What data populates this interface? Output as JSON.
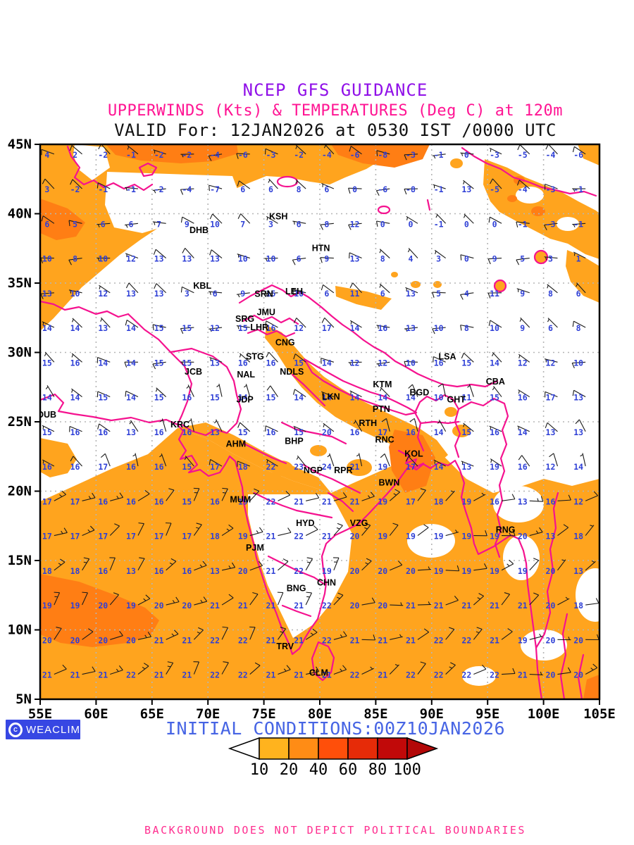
{
  "title": {
    "line1": "NCEP GFS GUIDANCE",
    "line2": "UPPERWINDS (Kts) & TEMPERATURES (Deg C) at 120m",
    "line3": "VALID For: 12JAN2026 at 0530 IST /0000 UTC"
  },
  "initial_conditions": "INITIAL CONDITIONS:00Z10JAN2026",
  "footer": "BACKGROUND DOES NOT DEPICT POLITICAL BOUNDARIES",
  "watermark": {
    "text": "WEACLIM",
    "icon": "copyright-circle-icon"
  },
  "colors": {
    "title_purple": "#9010E8",
    "title_pink": "#FF1493",
    "title_black": "#111111",
    "initial_blue": "#4664E4",
    "footer_pink": "#FF2D8F",
    "watermark_bg": "#3747E3",
    "boundary_pink": "#F5128F",
    "shade_light": "#FFA41E",
    "shade_dark": "#FF7E14",
    "temp_blue": "#2E3FD6",
    "grid_gray": "#B5B5B5",
    "barb_black": "#1a1a1a"
  },
  "map_extent": {
    "lon_min": 55,
    "lon_max": 105,
    "lat_min": 5,
    "lat_max": 45
  },
  "axes": {
    "lat_labels": [
      "45N",
      "40N",
      "35N",
      "30N",
      "25N",
      "20N",
      "15N",
      "10N",
      "5N"
    ],
    "lon_labels": [
      "55E",
      "60E",
      "65E",
      "70E",
      "75E",
      "80E",
      "85E",
      "90E",
      "95E",
      "100E",
      "105E"
    ]
  },
  "legend": {
    "values": [
      "10",
      "20",
      "40",
      "60",
      "80",
      "100"
    ],
    "box_colors": [
      "#FFB31E",
      "#FF8C15",
      "#FF4F0A",
      "#E62B08",
      "#C10909"
    ],
    "arrow_left_color": "#FFFFFF",
    "arrow_right_color": "#B30808"
  },
  "temps_c": {
    "lons": [
      56.25,
      58.75,
      61.25,
      63.75,
      66.25,
      68.75,
      71.25,
      73.75,
      76.25,
      78.75,
      81.25,
      83.75,
      86.25,
      88.75,
      91.25,
      93.75,
      96.25,
      98.75,
      101.25,
      103.75
    ],
    "lats": [
      44.3,
      41.8,
      39.3,
      36.8,
      34.3,
      31.8,
      29.3,
      26.8,
      24.3,
      21.8,
      19.3,
      16.8,
      14.3,
      11.8,
      9.3,
      6.8
    ],
    "values": [
      [
        4,
        2,
        -2,
        -1,
        -2,
        -2,
        -4,
        -6,
        -3,
        -2,
        -4,
        -6,
        -8,
        -3,
        -1,
        0,
        -3,
        -5,
        -4,
        -6
      ],
      [
        3,
        -2,
        -1,
        -1,
        -2,
        -4,
        -7,
        6,
        6,
        8,
        6,
        0,
        -6,
        -8,
        -1,
        13,
        -5,
        -4,
        -3,
        -1
      ],
      [
        6,
        5,
        6,
        6,
        7,
        9,
        10,
        7,
        3,
        6,
        8,
        12,
        0,
        0,
        -1,
        0,
        0,
        -1,
        -3,
        -1
      ],
      [
        10,
        8,
        10,
        12,
        13,
        13,
        13,
        10,
        10,
        6,
        9,
        13,
        8,
        4,
        3,
        0,
        9,
        5,
        3,
        1
      ],
      [
        13,
        10,
        12,
        13,
        13,
        3,
        6,
        9,
        15,
        10,
        6,
        11,
        6,
        13,
        5,
        4,
        11,
        9,
        8,
        6
      ],
      [
        14,
        14,
        13,
        14,
        15,
        15,
        12,
        15,
        16,
        12,
        17,
        14,
        16,
        13,
        10,
        8,
        10,
        9,
        6,
        8
      ],
      [
        15,
        16,
        14,
        14,
        15,
        15,
        13,
        16,
        16,
        15,
        14,
        12,
        12,
        10,
        16,
        15,
        14,
        12,
        12,
        10
      ],
      [
        14,
        14,
        15,
        14,
        15,
        16,
        15,
        14,
        15,
        14,
        14,
        14,
        14,
        14,
        10,
        11,
        15,
        16,
        17,
        13
      ],
      [
        15,
        16,
        16,
        13,
        16,
        16,
        13,
        15,
        16,
        15,
        20,
        16,
        17,
        16,
        14,
        15,
        16,
        14,
        13,
        13
      ],
      [
        16,
        16,
        17,
        16,
        16,
        15,
        17,
        18,
        22,
        23,
        24,
        21,
        19,
        17,
        14,
        13,
        19,
        16,
        12,
        14
      ],
      [
        17,
        17,
        16,
        16,
        16,
        15,
        16,
        19,
        22,
        21,
        21,
        21,
        19,
        17,
        18,
        19,
        16,
        13,
        16,
        12
      ],
      [
        17,
        17,
        17,
        17,
        17,
        17,
        18,
        19,
        21,
        22,
        21,
        20,
        19,
        19,
        19,
        19,
        19,
        20,
        13,
        18
      ],
      [
        18,
        18,
        16,
        13,
        16,
        16,
        13,
        20,
        21,
        22,
        19,
        20,
        20,
        20,
        19,
        19,
        19,
        19,
        20,
        13
      ],
      [
        19,
        19,
        20,
        19,
        20,
        20,
        21,
        21,
        21,
        21,
        22,
        20,
        20,
        21,
        21,
        21,
        21,
        21,
        20,
        18
      ],
      [
        20,
        20,
        20,
        20,
        21,
        21,
        22,
        22,
        21,
        21,
        22,
        21,
        21,
        21,
        22,
        22,
        21,
        19,
        20,
        20
      ],
      [
        21,
        21,
        21,
        22,
        21,
        21,
        22,
        22,
        21,
        21,
        21,
        22,
        21,
        22,
        22,
        22,
        22,
        21,
        20,
        20
      ]
    ]
  },
  "wind_model": {
    "regions": [
      {
        "name": "northern-westerlies",
        "lat_min": 27.5,
        "lat_max": 46,
        "lon_min": 55,
        "lon_max": 105,
        "dir_from_deg": 290,
        "speed_kts": 8
      },
      {
        "name": "subtropical-northwesterlies",
        "lat_min": 20,
        "lat_max": 27.5,
        "lon_min": 55,
        "lon_max": 105,
        "dir_from_deg": 320,
        "speed_kts": 6
      },
      {
        "name": "arabian-sea-ne-trades",
        "lat_min": 4,
        "lat_max": 20,
        "lon_min": 55,
        "lon_max": 82,
        "dir_from_deg": 50,
        "speed_kts": 13
      },
      {
        "name": "bay-of-bengal-ne-trades",
        "lat_min": 4,
        "lat_max": 20,
        "lon_min": 82,
        "lon_max": 105,
        "dir_from_deg": 65,
        "speed_kts": 10
      }
    ]
  },
  "stations": [
    {
      "code": "KSH",
      "lon": 76.3,
      "lat": 39.6
    },
    {
      "code": "DHB",
      "lon": 69.2,
      "lat": 38.6
    },
    {
      "code": "HTN",
      "lon": 80.1,
      "lat": 37.3
    },
    {
      "code": "KBL",
      "lon": 69.5,
      "lat": 34.6
    },
    {
      "code": "SRN",
      "lon": 75.0,
      "lat": 34.0
    },
    {
      "code": "LEH",
      "lon": 77.7,
      "lat": 34.2
    },
    {
      "code": "JMU",
      "lon": 75.2,
      "lat": 32.7
    },
    {
      "code": "SRG",
      "lon": 73.3,
      "lat": 32.2
    },
    {
      "code": "LHR",
      "lon": 74.6,
      "lat": 31.6
    },
    {
      "code": "CNG",
      "lon": 76.9,
      "lat": 30.5
    },
    {
      "code": "STG",
      "lon": 74.2,
      "lat": 29.5
    },
    {
      "code": "JCB",
      "lon": 68.7,
      "lat": 28.4
    },
    {
      "code": "NAL",
      "lon": 73.4,
      "lat": 28.2
    },
    {
      "code": "NDLS",
      "lon": 77.5,
      "lat": 28.4
    },
    {
      "code": "JDP",
      "lon": 73.3,
      "lat": 26.4
    },
    {
      "code": "DUB",
      "lon": 55.6,
      "lat": 25.3
    },
    {
      "code": "KRC",
      "lon": 67.5,
      "lat": 24.6
    },
    {
      "code": "LKN",
      "lon": 81.0,
      "lat": 26.6
    },
    {
      "code": "KTM",
      "lon": 85.6,
      "lat": 27.5
    },
    {
      "code": "BGD",
      "lon": 88.9,
      "lat": 26.9
    },
    {
      "code": "GHT",
      "lon": 92.2,
      "lat": 26.4
    },
    {
      "code": "CBA",
      "lon": 95.7,
      "lat": 27.7
    },
    {
      "code": "LSA",
      "lon": 91.4,
      "lat": 29.5
    },
    {
      "code": "PTN",
      "lon": 85.5,
      "lat": 25.7
    },
    {
      "code": "RTH",
      "lon": 84.3,
      "lat": 24.7
    },
    {
      "code": "RNC",
      "lon": 85.8,
      "lat": 23.5
    },
    {
      "code": "KOL",
      "lon": 88.4,
      "lat": 22.5
    },
    {
      "code": "RPR",
      "lon": 82.1,
      "lat": 21.3
    },
    {
      "code": "BWN",
      "lon": 86.2,
      "lat": 20.4
    },
    {
      "code": "AHM",
      "lon": 72.5,
      "lat": 23.2
    },
    {
      "code": "BHP",
      "lon": 77.7,
      "lat": 23.4
    },
    {
      "code": "NGP",
      "lon": 79.4,
      "lat": 21.3
    },
    {
      "code": "MUM",
      "lon": 72.9,
      "lat": 19.2
    },
    {
      "code": "HYD",
      "lon": 78.7,
      "lat": 17.5
    },
    {
      "code": "VZG",
      "lon": 83.5,
      "lat": 17.5
    },
    {
      "code": "PJM",
      "lon": 74.2,
      "lat": 15.7
    },
    {
      "code": "BNG",
      "lon": 77.9,
      "lat": 12.8
    },
    {
      "code": "CHN",
      "lon": 80.6,
      "lat": 13.2
    },
    {
      "code": "TRV",
      "lon": 76.9,
      "lat": 8.6
    },
    {
      "code": "CLM",
      "lon": 79.9,
      "lat": 6.7
    },
    {
      "code": "RNG",
      "lon": 96.6,
      "lat": 17.0
    }
  ]
}
